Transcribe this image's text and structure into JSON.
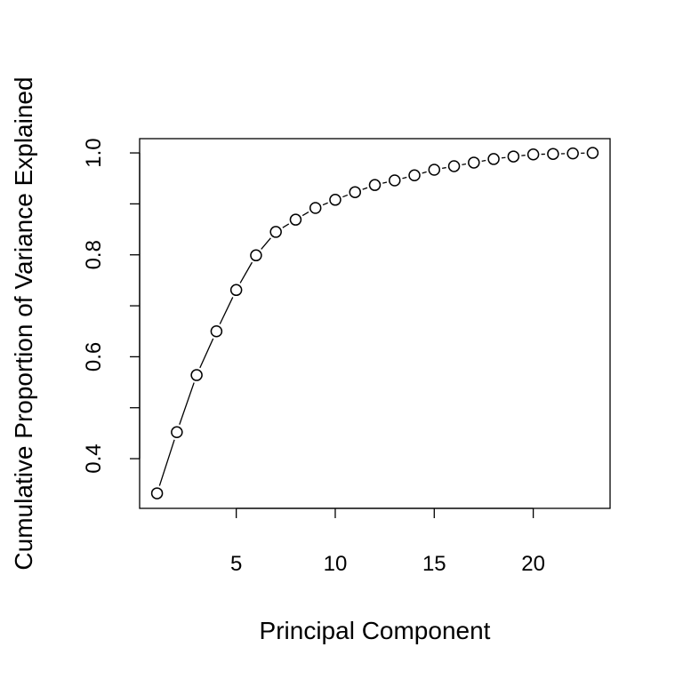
{
  "chart_data": {
    "type": "line",
    "title": "",
    "xlabel": "Principal Component",
    "ylabel": "Cumulative Proportion of Variance Explained",
    "x": [
      1,
      2,
      3,
      4,
      5,
      6,
      7,
      8,
      9,
      10,
      11,
      12,
      13,
      14,
      15,
      16,
      17,
      18,
      19,
      20,
      21,
      22,
      23
    ],
    "values": [
      0.332,
      0.452,
      0.564,
      0.65,
      0.731,
      0.799,
      0.845,
      0.869,
      0.892,
      0.908,
      0.923,
      0.937,
      0.946,
      0.956,
      0.967,
      0.974,
      0.981,
      0.988,
      0.993,
      0.997,
      0.998,
      0.999,
      1.0
    ],
    "xlim": [
      0.12,
      23.88
    ],
    "ylim": [
      0.3025,
      1.028
    ],
    "xticks": [
      5,
      10,
      15,
      20
    ],
    "xtick_labels": [
      "5",
      "10",
      "15",
      "20"
    ],
    "yticks": [
      0.4,
      0.5,
      0.6,
      0.7,
      0.8,
      0.9,
      1.0
    ],
    "ytick_labels": [
      "0.4",
      "",
      "0.6",
      "",
      "0.8",
      "",
      "1.0"
    ],
    "grid": false,
    "marker": "open-circle",
    "line_style": "both"
  }
}
